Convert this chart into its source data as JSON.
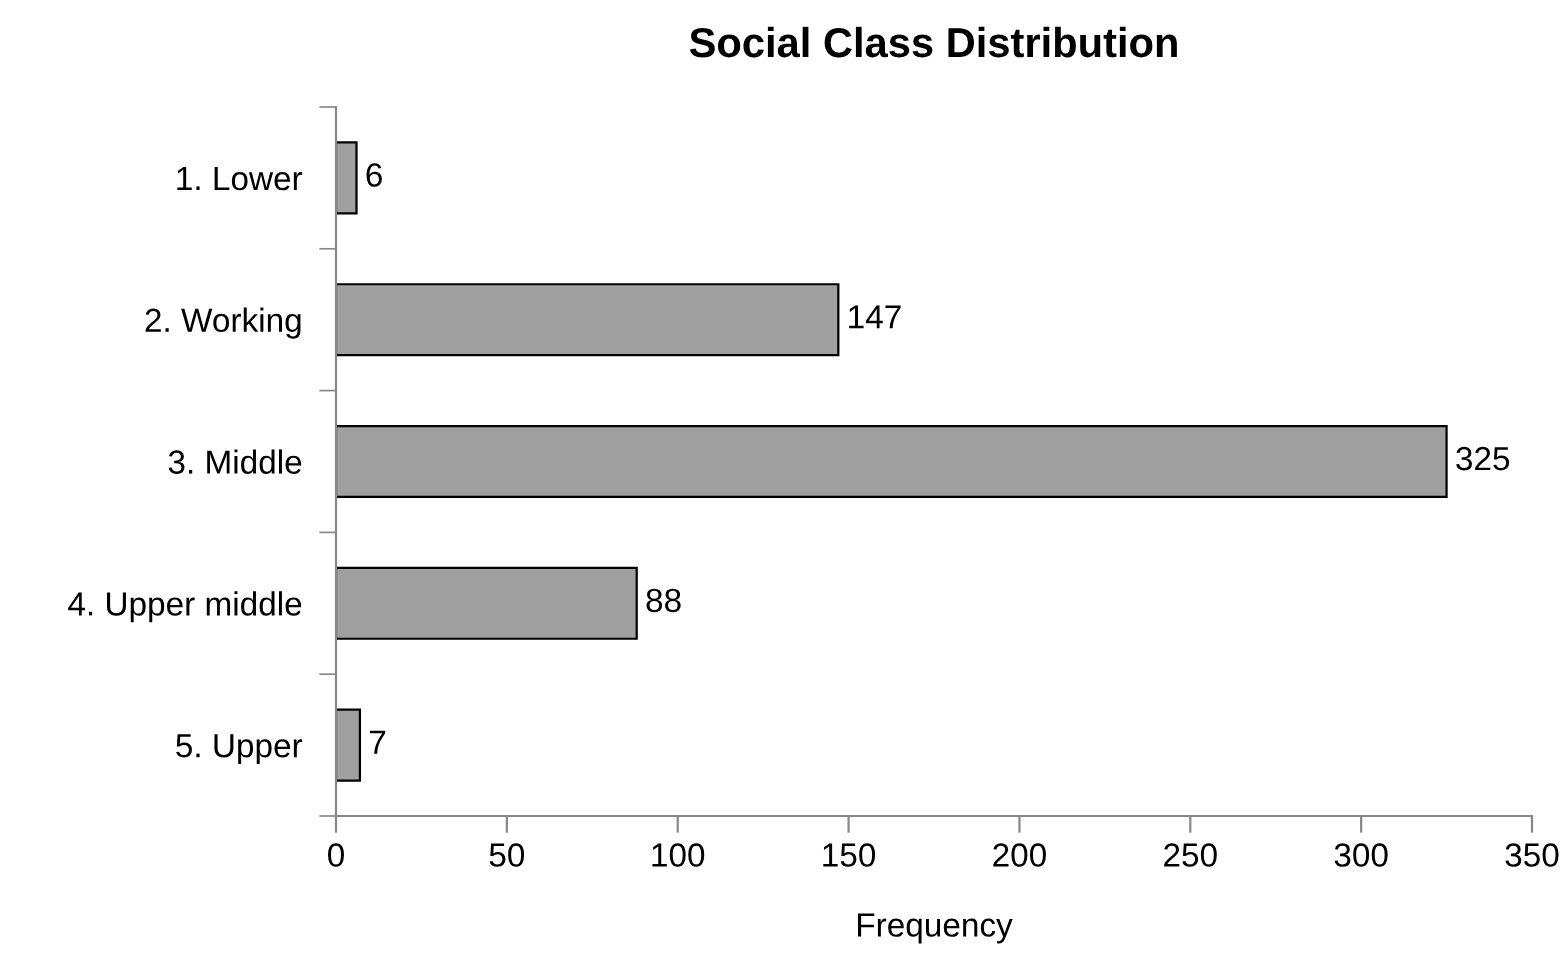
{
  "chart_data": {
    "type": "bar",
    "orientation": "horizontal",
    "title": "Social Class Distribution",
    "xlabel": "Frequency",
    "categories": [
      "1. Lower",
      "2. Working",
      "3. Middle",
      "4. Upper middle",
      "5. Upper"
    ],
    "values": [
      6,
      147,
      325,
      88,
      7
    ],
    "color": "#a0a0a0",
    "data_labels": true,
    "xlim": [
      0,
      350
    ],
    "xticks": [
      0,
      50,
      100,
      150,
      200,
      250,
      300,
      350
    ],
    "grid": false
  }
}
